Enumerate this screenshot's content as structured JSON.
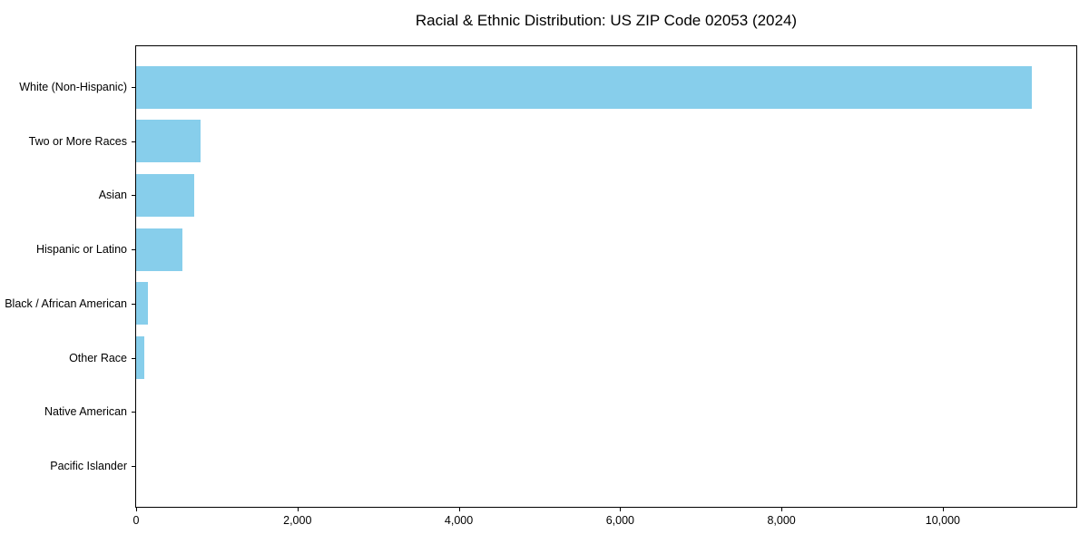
{
  "chart_data": {
    "type": "bar",
    "orientation": "horizontal",
    "title": "Racial & Ethnic Distribution: US ZIP Code 02053 (2024)",
    "categories": [
      "White (Non-Hispanic)",
      "Two or More Races",
      "Asian",
      "Hispanic or Latino",
      "Black / African American",
      "Other Race",
      "Native American",
      "Pacific Islander"
    ],
    "values": [
      11100,
      800,
      725,
      575,
      150,
      100,
      0,
      0
    ],
    "xlabel": "",
    "ylabel": "",
    "xlim": [
      0,
      11655
    ],
    "xticks": [
      0,
      2000,
      4000,
      6000,
      8000,
      10000
    ],
    "xtick_labels": [
      "0",
      "2,000",
      "4,000",
      "6,000",
      "8,000",
      "10,000"
    ],
    "bar_color": "#87CEEB",
    "axis_color": "#000000",
    "background_color": "#ffffff",
    "grid": false,
    "legend": null
  }
}
